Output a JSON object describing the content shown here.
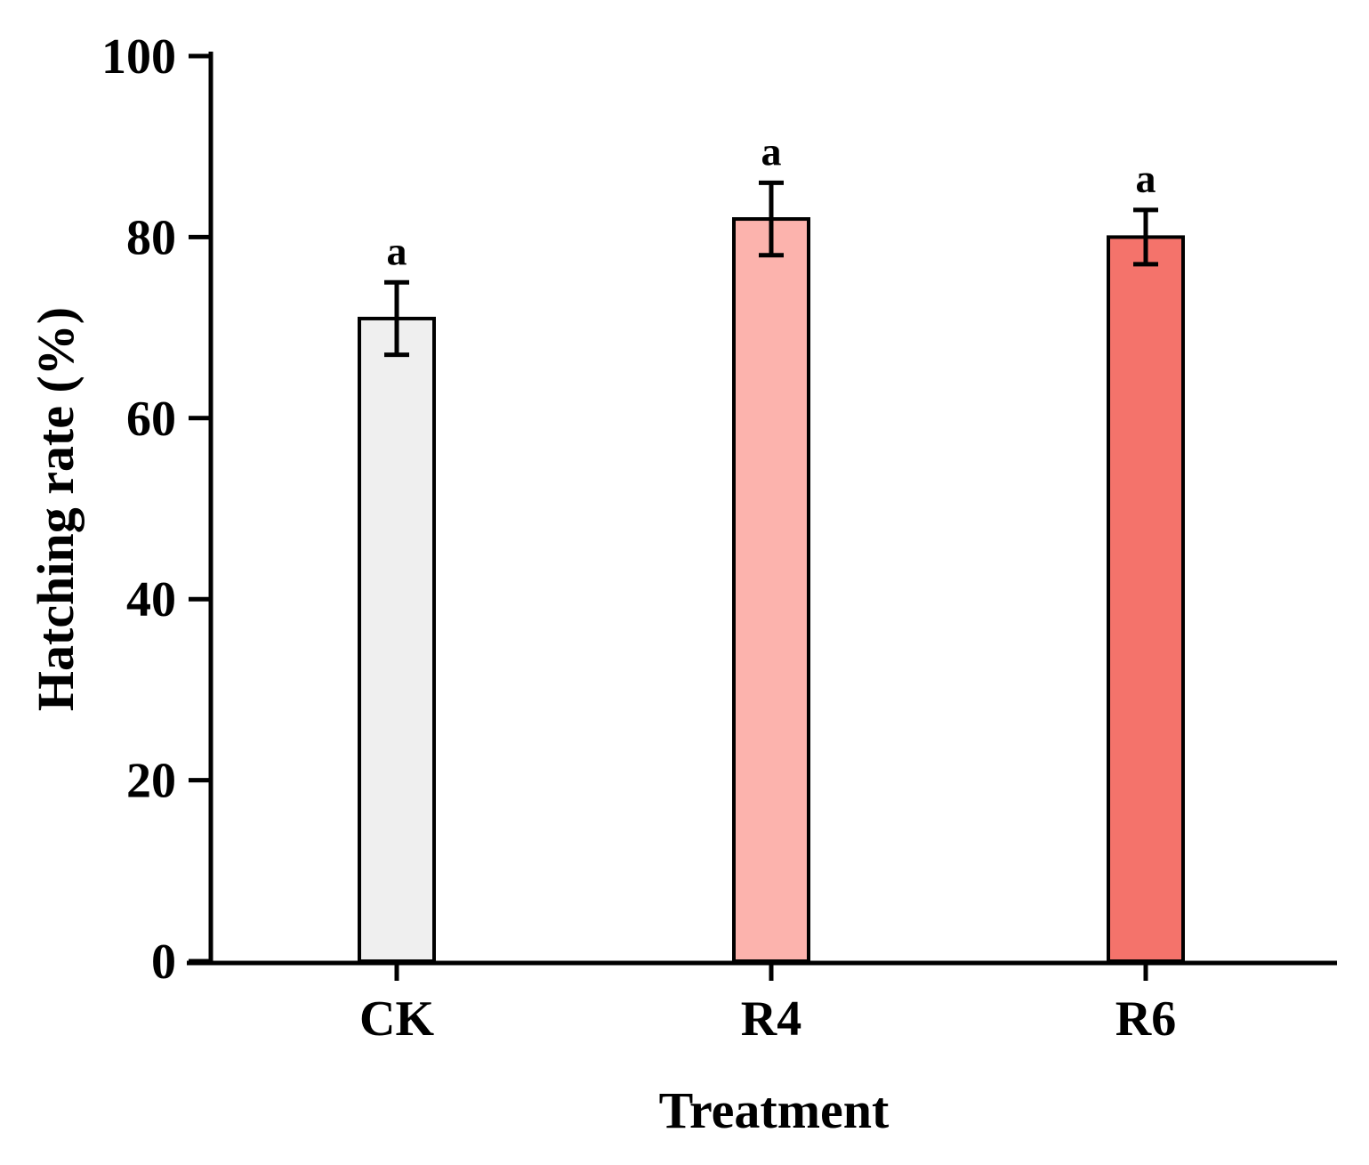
{
  "chart_data": {
    "type": "bar",
    "title": "",
    "xlabel": "Treatment",
    "ylabel": "Hatching rate (%)",
    "ylim": [
      0,
      100
    ],
    "yticks": [
      0,
      20,
      40,
      60,
      80,
      100
    ],
    "ytick_labels": [
      "0",
      "20",
      "40",
      "60",
      "80",
      "100"
    ],
    "categories": [
      "CK",
      "R4",
      "R6"
    ],
    "values": [
      71,
      82,
      80
    ],
    "errors": [
      4,
      4,
      3
    ],
    "significance": [
      "a",
      "a",
      "a"
    ],
    "colors": [
      "#efefef",
      "#fcb3ad",
      "#f4736b"
    ],
    "grid": false,
    "legend": false
  }
}
